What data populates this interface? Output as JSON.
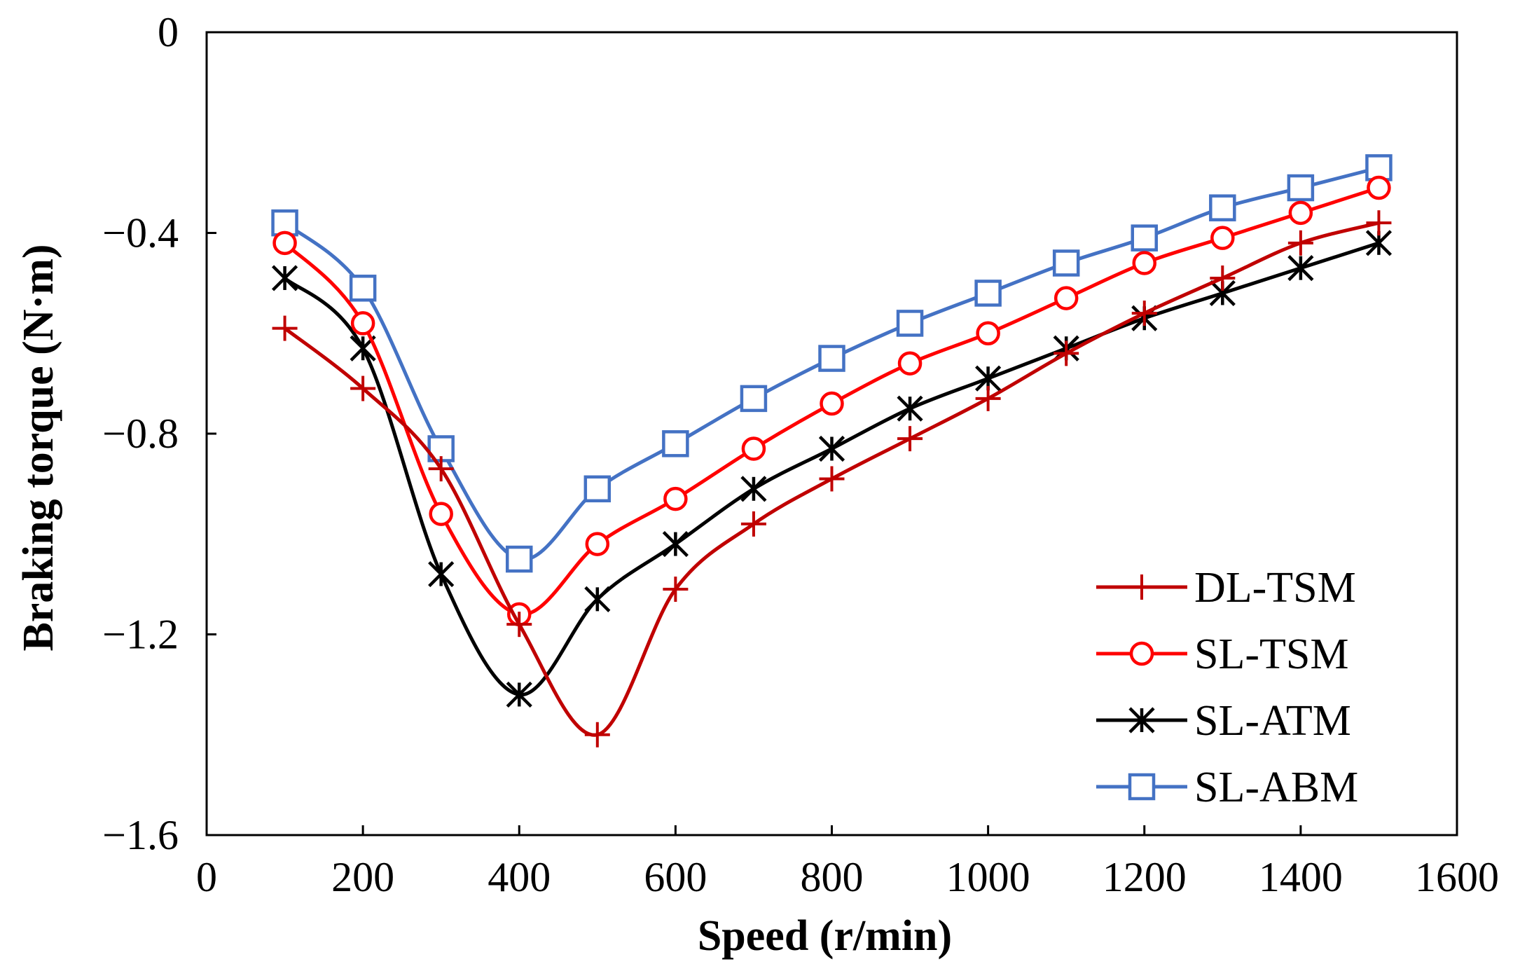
{
  "chart_data": {
    "type": "line",
    "title": "",
    "xlabel": "Speed (r/min)",
    "ylabel": "Braking torque (N·m)",
    "xlim": [
      0,
      1600
    ],
    "ylim": [
      -1.6,
      0
    ],
    "xticks": [
      0,
      200,
      400,
      600,
      800,
      1000,
      1200,
      1400,
      1600
    ],
    "xtick_labels": [
      "0",
      "200",
      "400",
      "600",
      "800",
      "1000",
      "1200",
      "1400",
      "1600"
    ],
    "yticks": [
      0,
      -0.4,
      -0.8,
      -1.2,
      -1.6
    ],
    "ytick_labels": [
      "0",
      "−0.4",
      "−0.8",
      "−1.2",
      "−1.6"
    ],
    "grid": false,
    "legend_position": "bottom-right",
    "x": [
      100,
      200,
      300,
      400,
      500,
      600,
      700,
      800,
      900,
      1000,
      1100,
      1200,
      1300,
      1400,
      1500
    ],
    "series": [
      {
        "name": "DL-TSM",
        "color": "#c00000",
        "marker": "plus",
        "values": [
          -0.59,
          -0.71,
          -0.87,
          -1.18,
          -1.4,
          -1.11,
          -0.98,
          -0.89,
          -0.81,
          -0.73,
          -0.64,
          -0.56,
          -0.49,
          -0.42,
          -0.38
        ]
      },
      {
        "name": "SL-TSM",
        "color": "#ff0000",
        "marker": "circle",
        "values": [
          -0.42,
          -0.58,
          -0.96,
          -1.16,
          -1.02,
          -0.93,
          -0.83,
          -0.74,
          -0.66,
          -0.6,
          -0.53,
          -0.46,
          -0.41,
          -0.36,
          -0.31
        ]
      },
      {
        "name": "SL-ATM",
        "color": "#000000",
        "marker": "asterisk",
        "values": [
          -0.49,
          -0.63,
          -1.08,
          -1.32,
          -1.13,
          -1.02,
          -0.91,
          -0.83,
          -0.75,
          -0.69,
          -0.63,
          -0.57,
          -0.52,
          -0.47,
          -0.42
        ]
      },
      {
        "name": "SL-ABM",
        "color": "#4472c4",
        "marker": "square",
        "values": [
          -0.38,
          -0.51,
          -0.83,
          -1.05,
          -0.91,
          -0.82,
          -0.73,
          -0.65,
          -0.58,
          -0.52,
          -0.46,
          -0.41,
          -0.35,
          -0.31,
          -0.27
        ]
      }
    ]
  }
}
